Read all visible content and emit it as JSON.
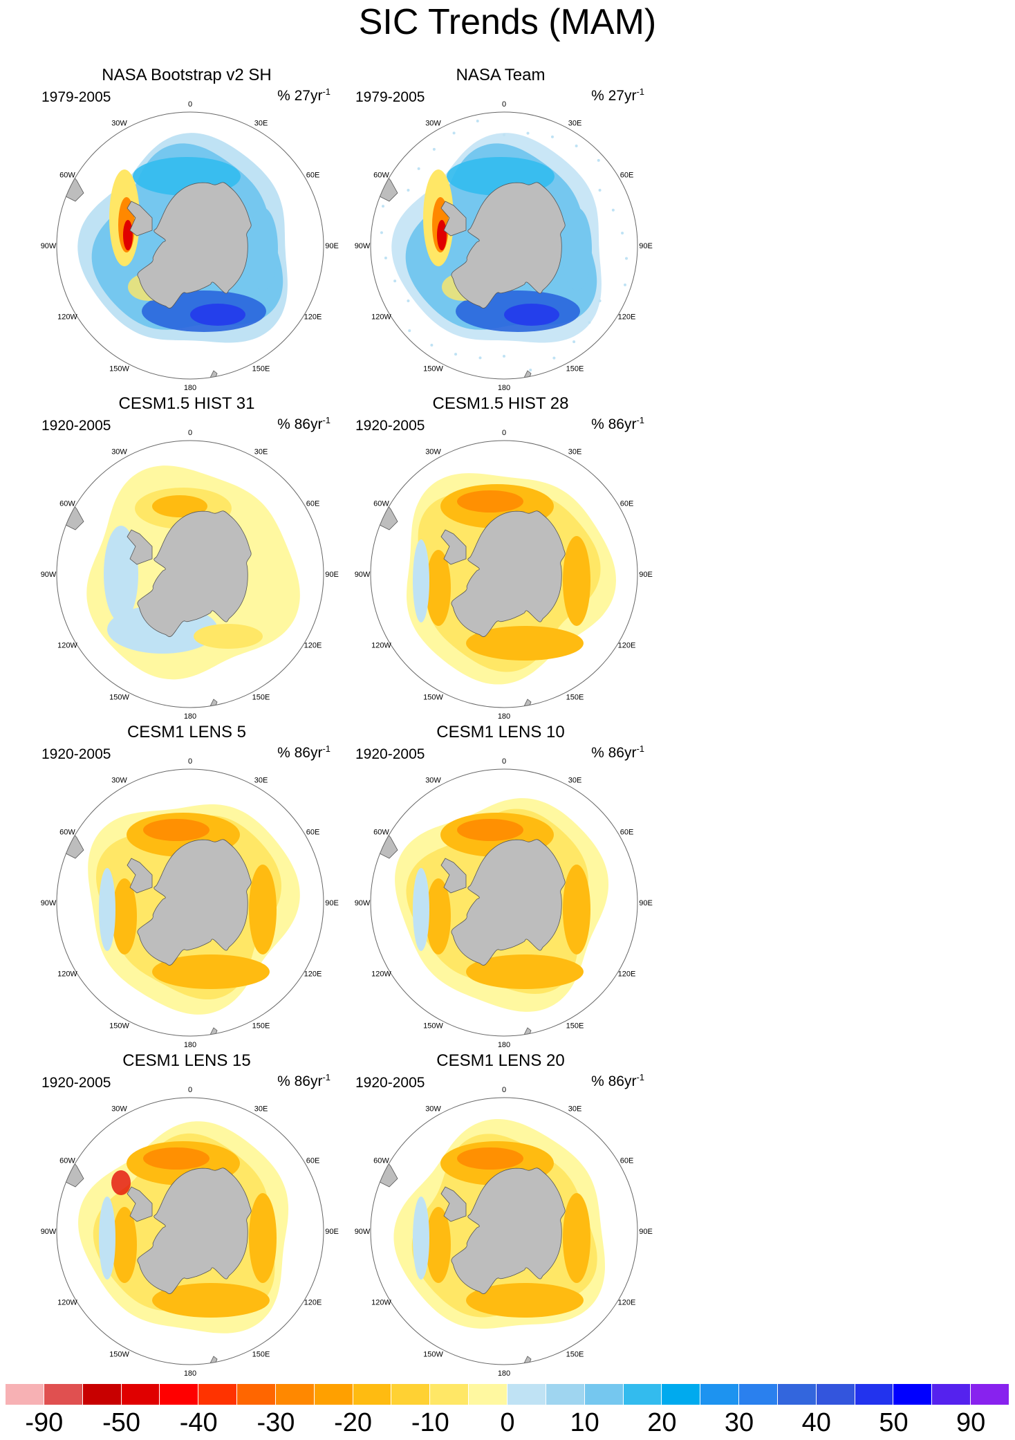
{
  "title": "SIC Trends (MAM)",
  "degree_labels": [
    "0",
    "30E",
    "60E",
    "90E",
    "120E",
    "150E",
    "180",
    "150W",
    "120W",
    "90W",
    "60W",
    "30W"
  ],
  "panels": [
    {
      "title": "NASA Bootstrap v2 SH",
      "period": "1979-2005",
      "units_prefix": "% 27yr",
      "units_exp": "-1",
      "pattern": "obs"
    },
    {
      "title": "NASA Team",
      "period": "1979-2005",
      "units_prefix": "% 27yr",
      "units_exp": "-1",
      "pattern": "obs2"
    },
    {
      "title": "CESM1.5 HIST 31",
      "period": "1920-2005",
      "units_prefix": "% 86yr",
      "units_exp": "-1",
      "pattern": "model_light"
    },
    {
      "title": "CESM1.5 HIST 28",
      "period": "1920-2005",
      "units_prefix": "% 86yr",
      "units_exp": "-1",
      "pattern": "model"
    },
    {
      "title": "CESM1 LENS 5",
      "period": "1920-2005",
      "units_prefix": "% 86yr",
      "units_exp": "-1",
      "pattern": "model"
    },
    {
      "title": "CESM1 LENS 10",
      "period": "1920-2005",
      "units_prefix": "% 86yr",
      "units_exp": "-1",
      "pattern": "model"
    },
    {
      "title": "CESM1 LENS 15",
      "period": "1920-2005",
      "units_prefix": "% 86yr",
      "units_exp": "-1",
      "pattern": "model"
    },
    {
      "title": "CESM1 LENS 20",
      "period": "1920-2005",
      "units_prefix": "% 86yr",
      "units_exp": "-1",
      "pattern": "model"
    }
  ],
  "colorbar": {
    "colors": [
      "#f7b1b4",
      "#e05050",
      "#c80000",
      "#e00000",
      "#ff0000",
      "#ff3300",
      "#ff6600",
      "#ff8800",
      "#ffa000",
      "#ffbb11",
      "#ffd133",
      "#ffe766",
      "#fff8a0",
      "#bfe2f4",
      "#9fd5f0",
      "#75c7ef",
      "#33bbee",
      "#00aaee",
      "#1d93f0",
      "#2a80ee",
      "#3366dd",
      "#3355dd",
      "#2233ee",
      "#0000ff",
      "#5522ee",
      "#8822ee"
    ],
    "labels": [
      "-90",
      "-50",
      "-40",
      "-30",
      "-20",
      "-10",
      "0",
      "10",
      "20",
      "30",
      "40",
      "50",
      "90"
    ]
  },
  "colors": {
    "land": "#bdbdbd",
    "land_edge": "#555555",
    "strong_pos": "#ff8800",
    "mid_pos": "#ffbb11",
    "light_pos": "#ffe766",
    "pale_pos": "#fff8a0",
    "pale_neg": "#bfe2f4",
    "mid_neg": "#33bbee",
    "strong_neg": "#2a66dd",
    "deep_red": "#e00000"
  }
}
